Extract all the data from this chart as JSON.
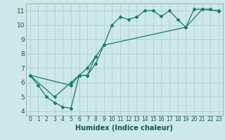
{
  "xlabel": "Humidex (Indice chaleur)",
  "bg_color": "#cce8e8",
  "grid_color": "#b0d0d0",
  "line_color": "#1a7a6e",
  "xlim": [
    -0.5,
    23.5
  ],
  "ylim": [
    3.7,
    11.5
  ],
  "xticks": [
    0,
    1,
    2,
    3,
    4,
    5,
    6,
    7,
    8,
    9,
    10,
    11,
    12,
    13,
    14,
    15,
    16,
    17,
    18,
    19,
    20,
    21,
    22,
    23
  ],
  "yticks": [
    4,
    5,
    6,
    7,
    8,
    9,
    10,
    11
  ],
  "series": [
    {
      "x": [
        0,
        1,
        2,
        3,
        4,
        5,
        6,
        7,
        8,
        9,
        10,
        11,
        12,
        13,
        14,
        15,
        16,
        17,
        18,
        19,
        21,
        22,
        23
      ],
      "y": [
        6.5,
        5.8,
        5.0,
        4.6,
        4.3,
        4.2,
        6.5,
        6.5,
        7.3,
        8.6,
        10.0,
        10.55,
        10.4,
        10.55,
        11.0,
        11.0,
        10.6,
        11.0,
        10.4,
        9.85,
        11.1,
        11.1,
        10.95
      ]
    },
    {
      "x": [
        0,
        3,
        5,
        6,
        7,
        8,
        9,
        19,
        20,
        21,
        23
      ],
      "y": [
        6.5,
        5.0,
        6.0,
        6.5,
        6.5,
        7.8,
        8.6,
        9.85,
        11.1,
        11.1,
        11.0
      ]
    },
    {
      "x": [
        0,
        5,
        6,
        7,
        8
      ],
      "y": [
        6.5,
        5.8,
        6.5,
        7.0,
        7.8
      ]
    }
  ]
}
